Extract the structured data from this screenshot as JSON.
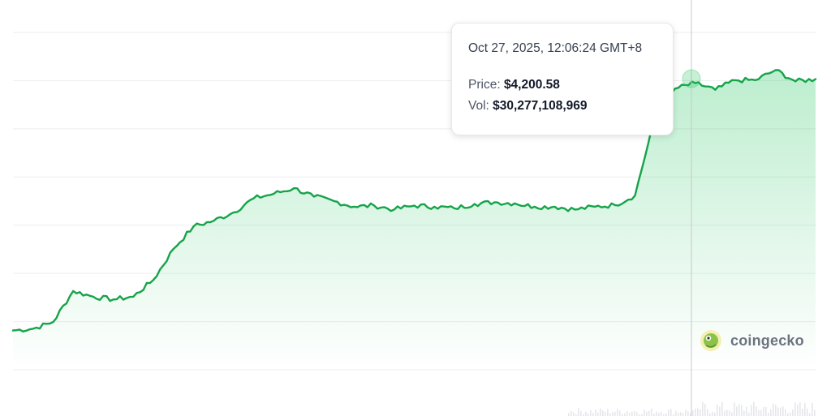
{
  "chart_data": {
    "type": "area",
    "x_unit": "time (Oct 2025, hover shown Oct 27 12:06:24 GMT+8)",
    "y_unit": "USD",
    "ylim": [
      3700,
      4300
    ],
    "grid": true,
    "legend": "none",
    "series": [
      {
        "x_index": [
          0,
          5,
          10,
          15,
          20,
          25,
          30,
          35,
          40,
          45,
          50,
          55,
          60,
          65,
          70,
          75,
          80,
          85,
          90,
          95,
          100,
          105,
          110,
          115,
          120,
          125,
          130,
          135,
          140,
          145,
          150,
          155,
          160,
          165,
          170,
          175,
          180,
          185,
          190,
          195,
          200
        ],
        "values": [
          3770,
          3773,
          3785,
          3840,
          3830,
          3825,
          3830,
          3860,
          3915,
          3955,
          3965,
          3980,
          4005,
          4013,
          4023,
          4008,
          4000,
          3990,
          3992,
          3985,
          3992,
          3990,
          3987,
          3995,
          3998,
          3996,
          3990,
          3990,
          3985,
          3990,
          3993,
          4010,
          4150,
          4200,
          4210,
          4198,
          4215,
          4215,
          4233,
          4213,
          4217
        ],
        "color": "#16a34a"
      }
    ],
    "hover": {
      "date": "Oct 27, 2025, 12:06:24 GMT+8",
      "price_label": "Price:",
      "price": "$4,200.58",
      "vol_label": "Vol:",
      "vol": "$30,277,108,969"
    }
  },
  "branding": {
    "name": "coingecko"
  },
  "colors": {
    "line": "#16a34a",
    "grid": "#eeeeee",
    "crosshair": "#c8c8c8"
  }
}
